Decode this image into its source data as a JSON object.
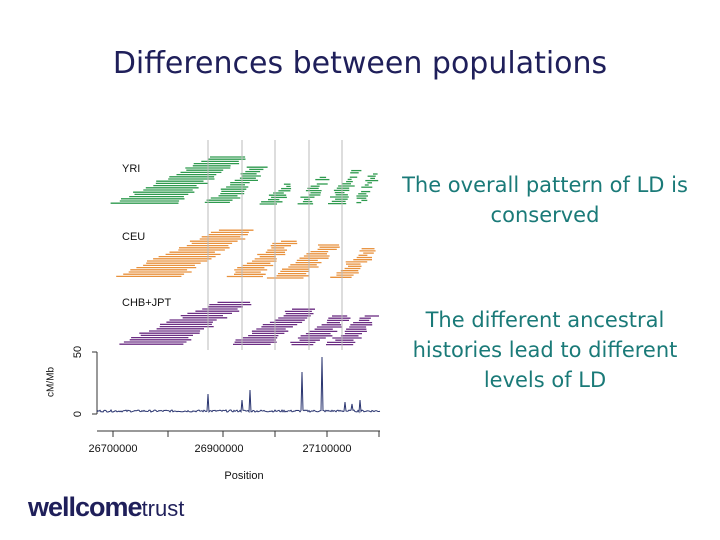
{
  "slide": {
    "title": "Differences between populations",
    "text_1": "The overall pattern of LD is conserved",
    "text_2": "The different ancestral histories lead to different levels of LD"
  },
  "figure": {
    "populations": [
      {
        "name": "YRI",
        "color": "#2e9a4e"
      },
      {
        "name": "CEU",
        "color": "#e8913c"
      },
      {
        "name": "CHB+JPT",
        "color": "#6b2d83"
      }
    ],
    "ylabel": "cM/Mb",
    "yticks": [
      "50",
      "0"
    ],
    "xticks": [
      "26700000",
      "26900000",
      "27100000"
    ],
    "xlabel": "Position",
    "recomb_color": "#2a3570"
  },
  "logo": {
    "part1": "wellcome",
    "part2": "trust"
  }
}
